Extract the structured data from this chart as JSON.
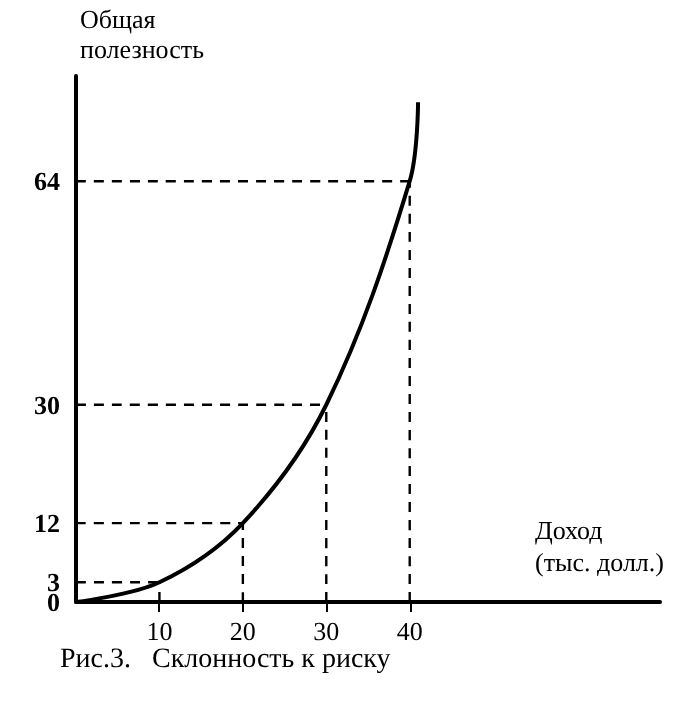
{
  "chart_data": {
    "type": "line",
    "ylabel": "Общая полезность",
    "xlabel": "Доход (тыс. долл.)",
    "annotations": [
      "Рис.3.   Склонность к риску"
    ],
    "x": [
      0,
      10,
      20,
      30,
      40,
      41
    ],
    "series": [
      {
        "color": "#000000",
        "values": [
          0,
          3,
          12,
          30,
          64,
          76
        ]
      },
      {
        "color": "#000000",
        "line_style": "dashed",
        "x": [
          0,
          10
        ],
        "values": [
          3,
          3
        ]
      },
      {
        "color": "#000000",
        "line_style": "dashed",
        "x": [
          10,
          10
        ],
        "values": [
          0,
          3
        ]
      },
      {
        "color": "#000000",
        "line_style": "dashed",
        "x": [
          0,
          20
        ],
        "values": [
          12,
          12
        ]
      },
      {
        "color": "#000000",
        "line_style": "dashed",
        "x": [
          20,
          20
        ],
        "values": [
          0,
          12
        ]
      },
      {
        "color": "#000000",
        "line_style": "dashed",
        "x": [
          0,
          30
        ],
        "values": [
          30,
          30
        ]
      },
      {
        "color": "#000000",
        "line_style": "dashed",
        "x": [
          30,
          30
        ],
        "values": [
          0,
          30
        ]
      },
      {
        "color": "#000000",
        "line_style": "dashed",
        "x": [
          0,
          40
        ],
        "values": [
          64,
          64
        ]
      },
      {
        "color": "#000000",
        "line_style": "dashed",
        "x": [
          40,
          40
        ],
        "values": [
          0,
          64
        ]
      }
    ],
    "xlim": [
      0,
      70
    ],
    "xticks": [
      10,
      20,
      30,
      40
    ],
    "ylim": [
      0,
      80
    ],
    "yticks": [
      0,
      3,
      12,
      30,
      64
    ],
    "grid": false,
    "marker": "none",
    "line_style": "solid"
  }
}
